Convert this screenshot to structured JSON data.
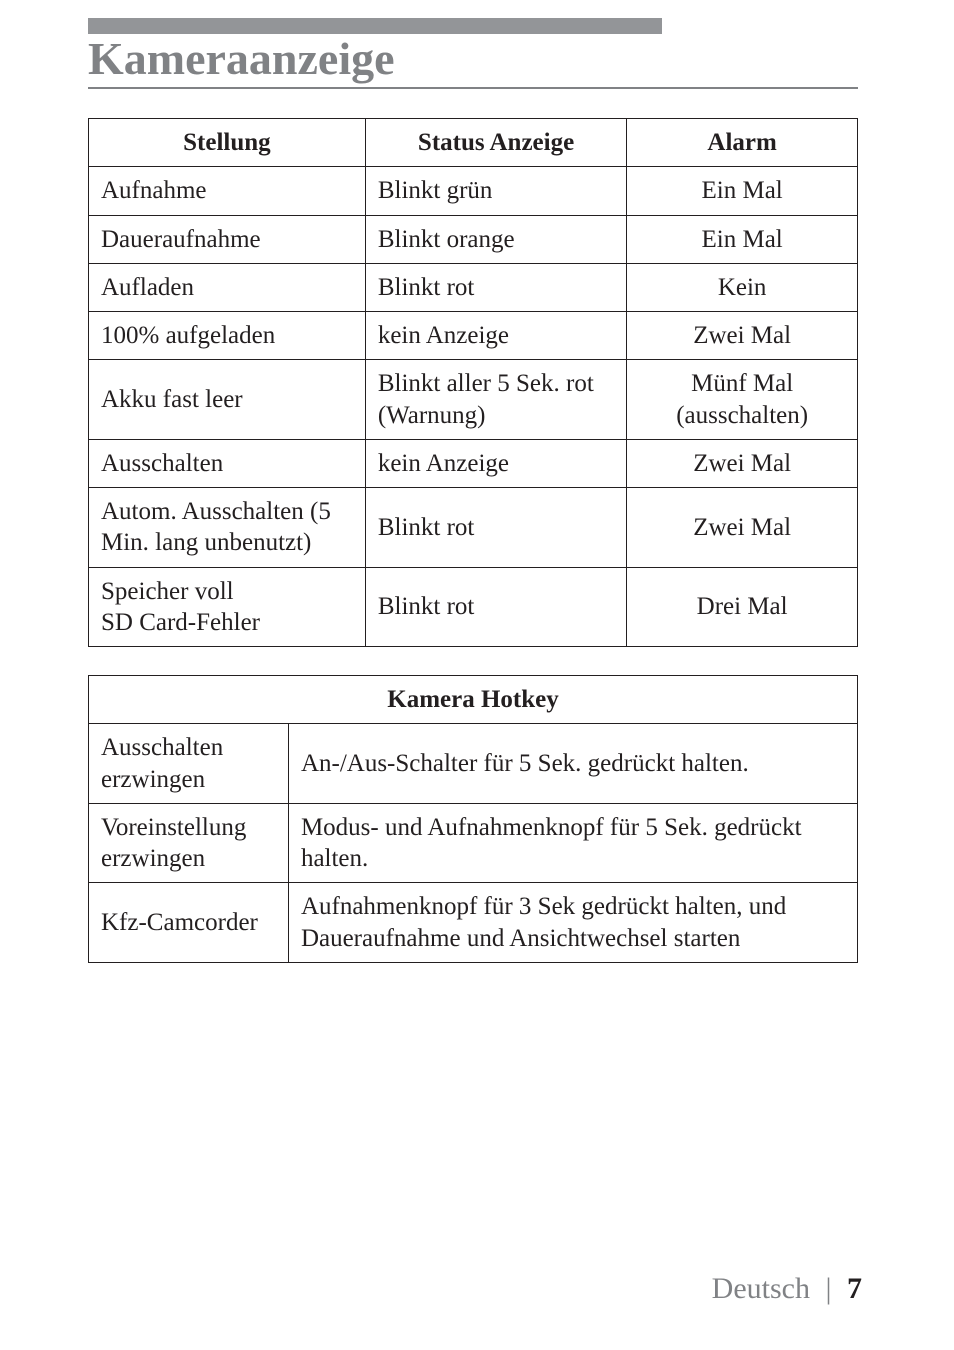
{
  "page": {
    "title": "Kameraanzeige",
    "language_label": "Deutsch",
    "page_number": "7",
    "top_bar_color": "#939598",
    "title_color": "#808285"
  },
  "status_table": {
    "columns": [
      "Stellung",
      "Status Anzeige",
      "Alarm"
    ],
    "rows": [
      [
        "Aufnahme",
        "Blinkt grün",
        "Ein Mal"
      ],
      [
        "Daueraufnahme",
        "Blinkt orange",
        "Ein Mal"
      ],
      [
        "Aufladen",
        "Blinkt rot",
        "Kein"
      ],
      [
        "100% aufgeladen",
        "kein Anzeige",
        "Zwei Mal"
      ],
      [
        "Akku fast leer",
        "Blinkt aller 5 Sek. rot (Warnung)",
        "Münf Mal (ausschalten)"
      ],
      [
        "Ausschalten",
        "kein Anzeige",
        "Zwei Mal"
      ],
      [
        "Autom. Ausschalten (5 Min. lang unbenutzt)",
        "Blinkt rot",
        "Zwei Mal"
      ],
      [
        "Speicher voll\nSD Card-Fehler",
        "Blinkt rot",
        "Drei Mal"
      ]
    ]
  },
  "hotkey_table": {
    "title": "Kamera Hotkey",
    "rows": [
      [
        "Ausschalten erzwingen",
        "An-/Aus-Schalter für 5 Sek. gedrückt halten."
      ],
      [
        "Voreinstellung erzwingen",
        "Modus- und Aufnahmenknopf für 5 Sek. gedrückt halten."
      ],
      [
        "Kfz-Camcorder",
        "Aufnahmenknopf für 3 Sek gedrückt halten, und Daueraufnahme und Ansichtwechsel starten"
      ]
    ]
  }
}
